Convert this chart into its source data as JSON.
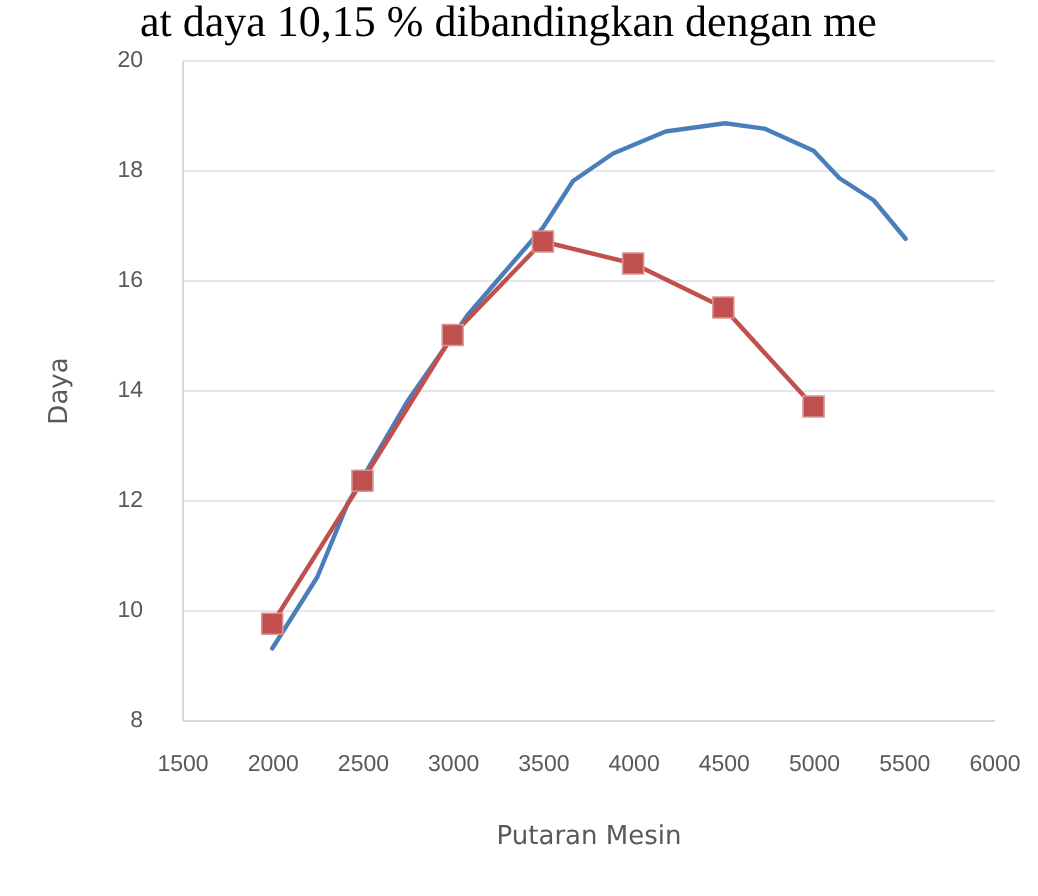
{
  "chart_data": {
    "type": "line",
    "xlabel": "Putaran Mesin",
    "ylabel": "Daya",
    "annotations": [
      "at daya 10,15 % dibandingkan dengan me"
    ],
    "xlim": [
      1500,
      6000
    ],
    "xticks": [
      1500,
      2000,
      2500,
      3000,
      3500,
      4000,
      4500,
      5000,
      5500,
      6000
    ],
    "ylim": [
      8,
      20
    ],
    "yticks": [
      8,
      10,
      12,
      14,
      16,
      18,
      20
    ],
    "grid": "y",
    "series": [
      {
        "color": "#4a7ebb",
        "marker": "none",
        "x": [
          2000,
          2250,
          2420,
          2750,
          3080,
          3250,
          3500,
          3667,
          3889,
          4180,
          4400,
          4510,
          4730,
          5000,
          5144,
          5333,
          5510
        ],
        "values": [
          9.3,
          10.6,
          11.95,
          13.8,
          15.35,
          16.0,
          16.95,
          17.8,
          18.3,
          18.7,
          18.8,
          18.85,
          18.75,
          18.35,
          17.85,
          17.45,
          16.75
        ]
      },
      {
        "color": "#c0504d",
        "marker": "square",
        "x": [
          2000,
          2500,
          3000,
          3500,
          4000,
          4500,
          5000
        ],
        "values": [
          9.75,
          12.35,
          15.0,
          16.7,
          16.3,
          15.5,
          13.7
        ]
      }
    ]
  }
}
